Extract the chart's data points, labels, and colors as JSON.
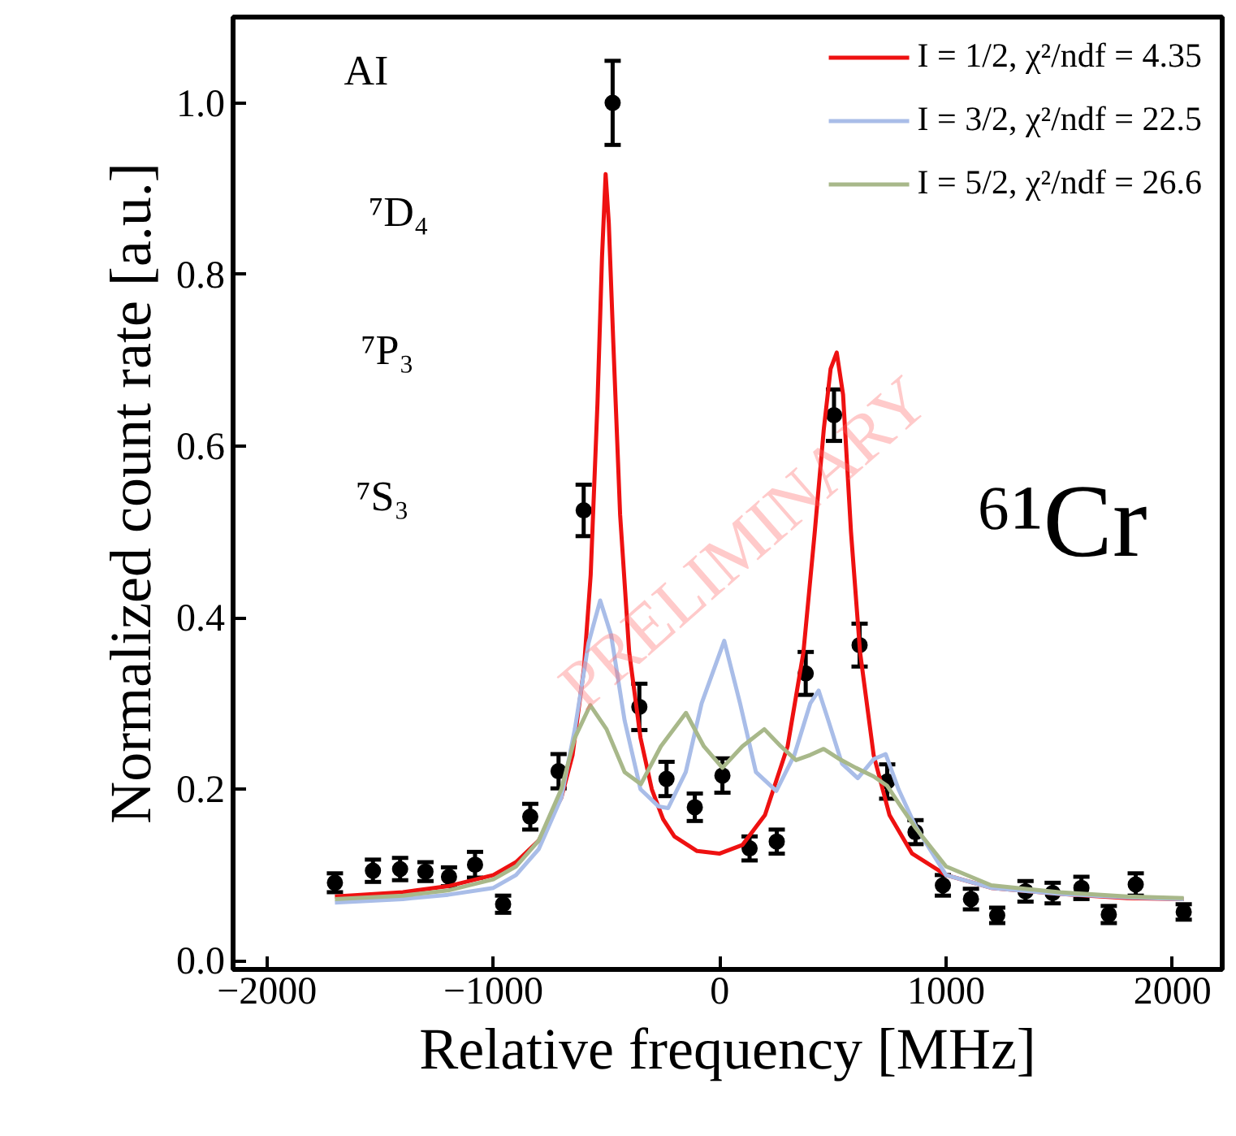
{
  "chart_data": {
    "type": "line",
    "xlabel": "Relative frequency [MHz]",
    "ylabel": "Normalized count rate [a.u.]",
    "xlim": [
      -2150,
      2220
    ],
    "ylim": [
      -0.01,
      1.1
    ],
    "xticks": [
      -2000,
      -1000,
      0,
      1000,
      2000
    ],
    "yticks": [
      {
        "value": 0,
        "label": "0.0"
      },
      {
        "value": 0.2,
        "label": "0.2"
      },
      {
        "value": 0.4,
        "label": "0.4"
      },
      {
        "value": 0.6,
        "label": "0.6"
      },
      {
        "value": 0.8,
        "label": "0.8"
      },
      {
        "value": 1,
        "label": "1.0"
      }
    ],
    "grid": false,
    "legend": "top right",
    "annotations": [
      "AI",
      "⁷D₄",
      "⁷P₃",
      "⁷S₃",
      "⁶¹Cr",
      "PRELIMINARY"
    ],
    "series": [
      {
        "type": "scatter",
        "marker": "circle",
        "color": "#000000",
        "x": [
          -1700,
          -1532,
          -1412,
          -1300,
          -1196,
          -1081,
          -957,
          -837,
          -712,
          -601,
          -473,
          -355,
          -235,
          -110,
          12,
          132,
          252,
          380,
          505,
          618,
          740,
          865,
          986,
          1110,
          1226,
          1351,
          1471,
          1598,
          1719,
          1838,
          2050
        ],
        "values": [
          0.091,
          0.105,
          0.107,
          0.104,
          0.098,
          0.112,
          0.066,
          0.168,
          0.221,
          0.525,
          1.0,
          0.296,
          0.212,
          0.179,
          0.216,
          0.131,
          0.139,
          0.335,
          0.636,
          0.368,
          0.209,
          0.15,
          0.088,
          0.072,
          0.053,
          0.081,
          0.079,
          0.085,
          0.054,
          0.089,
          0.057
        ],
        "errors": [
          0.011,
          0.013,
          0.013,
          0.011,
          0.011,
          0.015,
          0.01,
          0.015,
          0.02,
          0.03,
          0.049,
          0.027,
          0.02,
          0.016,
          0.02,
          0.014,
          0.014,
          0.025,
          0.03,
          0.025,
          0.02,
          0.014,
          0.012,
          0.012,
          0.009,
          0.012,
          0.012,
          0.013,
          0.01,
          0.013,
          0.009
        ]
      },
      {
        "name": "I = 1/2, χ²/ndf = 4.35",
        "color": "#ee1111",
        "x": [
          -1700,
          -1400,
          -1200,
          -1000,
          -900,
          -800,
          -700,
          -650,
          -600,
          -570,
          -540,
          -520,
          -504,
          -490,
          -470,
          -440,
          -400,
          -350,
          -300,
          -250,
          -200,
          -100,
          0,
          100,
          200,
          300,
          370,
          420,
          460,
          490,
          517,
          545,
          580,
          620,
          680,
          750,
          850,
          1000,
          1200,
          1500,
          1800,
          2050
        ],
        "values": [
          0.075,
          0.08,
          0.087,
          0.1,
          0.115,
          0.14,
          0.19,
          0.24,
          0.34,
          0.45,
          0.65,
          0.82,
          0.917,
          0.86,
          0.72,
          0.52,
          0.36,
          0.26,
          0.2,
          0.165,
          0.145,
          0.128,
          0.125,
          0.135,
          0.17,
          0.25,
          0.36,
          0.5,
          0.62,
          0.69,
          0.709,
          0.66,
          0.5,
          0.36,
          0.24,
          0.17,
          0.125,
          0.1,
          0.085,
          0.078,
          0.073,
          0.072
        ]
      },
      {
        "name": "I = 3/2, χ²/ndf = 22.5",
        "color": "#a9bde8",
        "x": [
          -1700,
          -1400,
          -1200,
          -1000,
          -900,
          -800,
          -700,
          -640,
          -580,
          -528,
          -480,
          -420,
          -350,
          -270,
          -228,
          -150,
          -80,
          20,
          90,
          160,
          250,
          330,
          400,
          437,
          480,
          540,
          610,
          680,
          733,
          790,
          865,
          1000,
          1200,
          1500,
          1800,
          2050
        ],
        "values": [
          0.068,
          0.072,
          0.077,
          0.085,
          0.1,
          0.13,
          0.19,
          0.27,
          0.37,
          0.42,
          0.38,
          0.28,
          0.2,
          0.18,
          0.178,
          0.22,
          0.3,
          0.373,
          0.3,
          0.22,
          0.198,
          0.24,
          0.3,
          0.315,
          0.28,
          0.23,
          0.213,
          0.235,
          0.241,
          0.2,
          0.157,
          0.1,
          0.085,
          0.078,
          0.074,
          0.072
        ]
      },
      {
        "name": "I = 5/2, χ²/ndf = 26.6",
        "color": "#a8b88a",
        "x": [
          -1700,
          -1400,
          -1200,
          -1000,
          -900,
          -800,
          -700,
          -640,
          -572,
          -500,
          -420,
          -348,
          -260,
          -149,
          -70,
          12,
          100,
          197,
          270,
          337,
          400,
          459,
          530,
          601,
          680,
          740,
          800,
          865,
          1000,
          1200,
          1500,
          1800,
          2050
        ],
        "values": [
          0.072,
          0.076,
          0.082,
          0.095,
          0.11,
          0.14,
          0.2,
          0.26,
          0.298,
          0.27,
          0.22,
          0.206,
          0.25,
          0.289,
          0.25,
          0.225,
          0.25,
          0.27,
          0.25,
          0.234,
          0.24,
          0.247,
          0.235,
          0.225,
          0.215,
          0.204,
          0.18,
          0.155,
          0.11,
          0.088,
          0.08,
          0.075,
          0.073
        ]
      }
    ]
  }
}
